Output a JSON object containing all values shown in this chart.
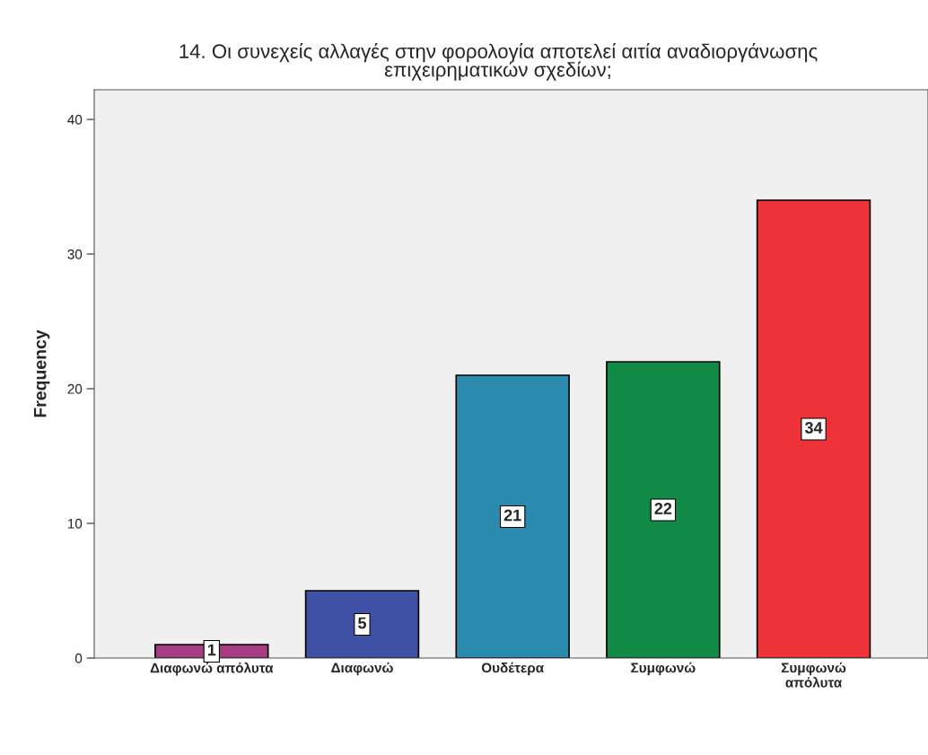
{
  "chart_data": {
    "type": "bar",
    "title": "14. Οι συνεχείς αλλαγές στην φορολογία αποτελεί αιτία αναδιοργάνωσης\nεπιχειρηματικών σχεδίων;",
    "ylabel": "Frequency",
    "categories": [
      "Διαφωνώ απόλυτα",
      "Διαφωνώ",
      "Ουδέτερα",
      "Συμφωνώ",
      "Συμφωνώ\nαπόλυτα"
    ],
    "values": [
      1,
      5,
      21,
      22,
      34
    ],
    "colors": [
      "#a83c82",
      "#3f51a5",
      "#2b8bae",
      "#128a47",
      "#ee3338"
    ],
    "ylim": [
      0,
      42.2
    ],
    "yticks": [
      0,
      10,
      20,
      30,
      40
    ],
    "grid": false,
    "data_labels": true
  }
}
